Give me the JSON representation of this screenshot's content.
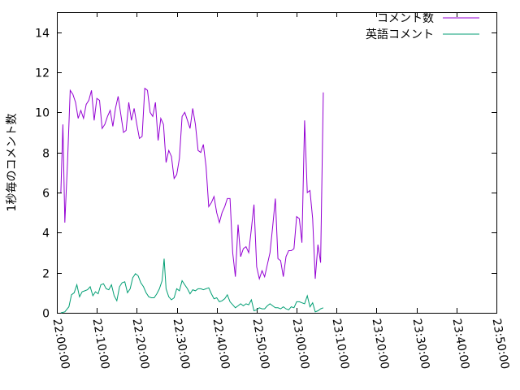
{
  "chart_data": {
    "type": "line",
    "title": "",
    "xlabel": "",
    "ylabel": "1秒毎のコメント数",
    "xlim": [
      "22:00:00",
      "23:50:00"
    ],
    "ylim": [
      0,
      15
    ],
    "grid": false,
    "legend_position": "top-right",
    "x_ticks": [
      "22:00:00",
      "22:10:00",
      "22:20:00",
      "22:30:00",
      "22:40:00",
      "22:50:00",
      "23:00:00",
      "23:10:00",
      "23:20:00",
      "23:30:00",
      "23:40:00",
      "23:50:00"
    ],
    "y_ticks": [
      "0",
      "2",
      "4",
      "6",
      "8",
      "10",
      "12",
      "14"
    ],
    "series": [
      {
        "name": "コメント数",
        "color": "#9400d3",
        "points": [
          [
            "22:01:00",
            6.0
          ],
          [
            "22:01:30",
            9.4
          ],
          [
            "22:02:00",
            4.5
          ],
          [
            "22:02:40",
            7.5
          ],
          [
            "22:03:20",
            11.1
          ],
          [
            "22:04:00",
            10.9
          ],
          [
            "22:04:40",
            10.5
          ],
          [
            "22:05:20",
            9.7
          ],
          [
            "22:06:00",
            10.1
          ],
          [
            "22:06:40",
            9.7
          ],
          [
            "22:07:20",
            10.4
          ],
          [
            "22:08:00",
            10.6
          ],
          [
            "22:08:40",
            11.1
          ],
          [
            "22:09:20",
            9.6
          ],
          [
            "22:10:00",
            10.7
          ],
          [
            "22:10:40",
            10.6
          ],
          [
            "22:11:20",
            9.2
          ],
          [
            "22:12:00",
            9.4
          ],
          [
            "22:12:40",
            9.8
          ],
          [
            "22:13:20",
            10.1
          ],
          [
            "22:14:00",
            9.3
          ],
          [
            "22:14:40",
            10.2
          ],
          [
            "22:15:20",
            10.8
          ],
          [
            "22:16:00",
            9.9
          ],
          [
            "22:16:40",
            9.0
          ],
          [
            "22:17:20",
            9.1
          ],
          [
            "22:18:00",
            10.5
          ],
          [
            "22:18:40",
            9.6
          ],
          [
            "22:19:20",
            10.2
          ],
          [
            "22:20:00",
            9.4
          ],
          [
            "22:20:40",
            8.7
          ],
          [
            "22:21:20",
            8.8
          ],
          [
            "22:22:00",
            11.2
          ],
          [
            "22:22:40",
            11.1
          ],
          [
            "22:23:20",
            10.0
          ],
          [
            "22:24:00",
            9.8
          ],
          [
            "22:24:40",
            10.5
          ],
          [
            "22:25:20",
            8.6
          ],
          [
            "22:26:00",
            9.7
          ],
          [
            "22:26:40",
            9.4
          ],
          [
            "22:27:20",
            7.5
          ],
          [
            "22:28:00",
            8.1
          ],
          [
            "22:28:40",
            7.8
          ],
          [
            "22:29:20",
            6.7
          ],
          [
            "22:30:00",
            6.9
          ],
          [
            "22:30:40",
            7.7
          ],
          [
            "22:31:20",
            9.8
          ],
          [
            "22:32:00",
            10.0
          ],
          [
            "22:32:40",
            9.6
          ],
          [
            "22:33:20",
            9.2
          ],
          [
            "22:34:00",
            10.2
          ],
          [
            "22:34:40",
            9.4
          ],
          [
            "22:35:20",
            8.1
          ],
          [
            "22:36:00",
            8.0
          ],
          [
            "22:36:40",
            8.4
          ],
          [
            "22:37:20",
            7.3
          ],
          [
            "22:38:00",
            5.3
          ],
          [
            "22:38:40",
            5.5
          ],
          [
            "22:39:20",
            5.8
          ],
          [
            "22:40:00",
            5.0
          ],
          [
            "22:40:40",
            4.5
          ],
          [
            "22:41:20",
            5.0
          ],
          [
            "22:42:00",
            5.3
          ],
          [
            "22:42:40",
            5.7
          ],
          [
            "22:43:20",
            5.7
          ],
          [
            "22:44:00",
            3.0
          ],
          [
            "22:44:40",
            1.8
          ],
          [
            "22:45:20",
            4.4
          ],
          [
            "22:46:00",
            2.8
          ],
          [
            "22:46:40",
            3.2
          ],
          [
            "22:47:20",
            3.3
          ],
          [
            "22:48:00",
            3.0
          ],
          [
            "22:48:40",
            4.2
          ],
          [
            "22:49:20",
            5.4
          ],
          [
            "22:50:00",
            2.3
          ],
          [
            "22:50:40",
            1.7
          ],
          [
            "22:51:20",
            2.1
          ],
          [
            "22:52:00",
            1.8
          ],
          [
            "22:52:40",
            2.4
          ],
          [
            "22:53:20",
            3.0
          ],
          [
            "22:54:00",
            4.3
          ],
          [
            "22:54:40",
            5.7
          ],
          [
            "22:55:20",
            2.7
          ],
          [
            "22:56:00",
            2.6
          ],
          [
            "22:56:40",
            1.8
          ],
          [
            "22:57:20",
            2.8
          ],
          [
            "22:58:00",
            3.1
          ],
          [
            "22:58:40",
            3.1
          ],
          [
            "22:59:20",
            3.2
          ],
          [
            "23:00:00",
            4.8
          ],
          [
            "23:00:40",
            4.7
          ],
          [
            "23:01:20",
            3.5
          ],
          [
            "23:02:00",
            9.6
          ],
          [
            "23:02:40",
            6.0
          ],
          [
            "23:03:20",
            6.1
          ],
          [
            "23:04:00",
            4.7
          ],
          [
            "23:04:40",
            1.7
          ],
          [
            "23:05:20",
            3.4
          ],
          [
            "23:06:00",
            2.5
          ],
          [
            "23:06:40",
            11.0
          ]
        ]
      },
      {
        "name": "英語コメント",
        "color": "#009e73",
        "points": [
          [
            "22:01:00",
            0.0
          ],
          [
            "22:02:00",
            0.05
          ],
          [
            "22:03:00",
            0.3
          ],
          [
            "22:03:40",
            0.9
          ],
          [
            "22:04:20",
            1.0
          ],
          [
            "22:05:00",
            1.4
          ],
          [
            "22:05:40",
            0.8
          ],
          [
            "22:06:20",
            1.05
          ],
          [
            "22:07:00",
            1.1
          ],
          [
            "22:07:40",
            1.15
          ],
          [
            "22:08:20",
            1.3
          ],
          [
            "22:09:00",
            0.85
          ],
          [
            "22:09:40",
            1.05
          ],
          [
            "22:10:20",
            0.95
          ],
          [
            "22:11:00",
            1.4
          ],
          [
            "22:11:40",
            1.45
          ],
          [
            "22:12:20",
            1.2
          ],
          [
            "22:13:00",
            1.15
          ],
          [
            "22:13:40",
            1.4
          ],
          [
            "22:14:20",
            0.85
          ],
          [
            "22:15:00",
            0.6
          ],
          [
            "22:15:40",
            1.3
          ],
          [
            "22:16:20",
            1.5
          ],
          [
            "22:17:00",
            1.55
          ],
          [
            "22:17:40",
            1.0
          ],
          [
            "22:18:20",
            1.2
          ],
          [
            "22:19:00",
            1.75
          ],
          [
            "22:19:40",
            1.95
          ],
          [
            "22:20:20",
            1.85
          ],
          [
            "22:21:00",
            1.5
          ],
          [
            "22:21:40",
            1.3
          ],
          [
            "22:22:20",
            1.0
          ],
          [
            "22:23:00",
            0.8
          ],
          [
            "22:23:40",
            0.75
          ],
          [
            "22:24:20",
            0.75
          ],
          [
            "22:25:00",
            0.95
          ],
          [
            "22:25:40",
            1.2
          ],
          [
            "22:26:20",
            1.6
          ],
          [
            "22:26:50",
            2.7
          ],
          [
            "22:27:20",
            1.2
          ],
          [
            "22:28:00",
            0.8
          ],
          [
            "22:28:40",
            0.65
          ],
          [
            "22:29:20",
            0.75
          ],
          [
            "22:30:00",
            1.2
          ],
          [
            "22:30:40",
            1.1
          ],
          [
            "22:31:20",
            1.6
          ],
          [
            "22:32:00",
            1.4
          ],
          [
            "22:32:40",
            1.2
          ],
          [
            "22:33:20",
            0.95
          ],
          [
            "22:34:00",
            1.15
          ],
          [
            "22:34:40",
            1.1
          ],
          [
            "22:35:20",
            1.2
          ],
          [
            "22:36:00",
            1.2
          ],
          [
            "22:36:40",
            1.15
          ],
          [
            "22:37:20",
            1.2
          ],
          [
            "22:38:00",
            1.25
          ],
          [
            "22:38:40",
            0.95
          ],
          [
            "22:39:20",
            0.7
          ],
          [
            "22:40:00",
            0.75
          ],
          [
            "22:40:40",
            0.55
          ],
          [
            "22:41:20",
            0.6
          ],
          [
            "22:42:00",
            0.7
          ],
          [
            "22:42:40",
            0.9
          ],
          [
            "22:43:20",
            0.55
          ],
          [
            "22:44:00",
            0.4
          ],
          [
            "22:44:40",
            0.25
          ],
          [
            "22:45:20",
            0.35
          ],
          [
            "22:46:00",
            0.45
          ],
          [
            "22:46:40",
            0.35
          ],
          [
            "22:47:20",
            0.45
          ],
          [
            "22:48:00",
            0.4
          ],
          [
            "22:48:40",
            0.65
          ],
          [
            "22:49:20",
            0.1
          ],
          [
            "22:50:00",
            0.15
          ],
          [
            "22:50:40",
            0.25
          ],
          [
            "22:51:20",
            0.2
          ],
          [
            "22:52:00",
            0.2
          ],
          [
            "22:52:40",
            0.35
          ],
          [
            "22:53:20",
            0.45
          ],
          [
            "22:54:00",
            0.35
          ],
          [
            "22:54:40",
            0.25
          ],
          [
            "22:55:20",
            0.25
          ],
          [
            "22:56:00",
            0.2
          ],
          [
            "22:56:40",
            0.3
          ],
          [
            "22:57:20",
            0.2
          ],
          [
            "22:58:00",
            0.15
          ],
          [
            "22:58:40",
            0.3
          ],
          [
            "22:59:20",
            0.25
          ],
          [
            "23:00:00",
            0.55
          ],
          [
            "23:00:40",
            0.55
          ],
          [
            "23:01:20",
            0.5
          ],
          [
            "23:02:00",
            0.45
          ],
          [
            "23:02:40",
            0.85
          ],
          [
            "23:03:20",
            0.3
          ],
          [
            "23:04:00",
            0.5
          ],
          [
            "23:04:40",
            0.05
          ],
          [
            "23:05:20",
            0.1
          ],
          [
            "23:06:00",
            0.2
          ],
          [
            "23:06:40",
            0.25
          ]
        ]
      }
    ]
  }
}
